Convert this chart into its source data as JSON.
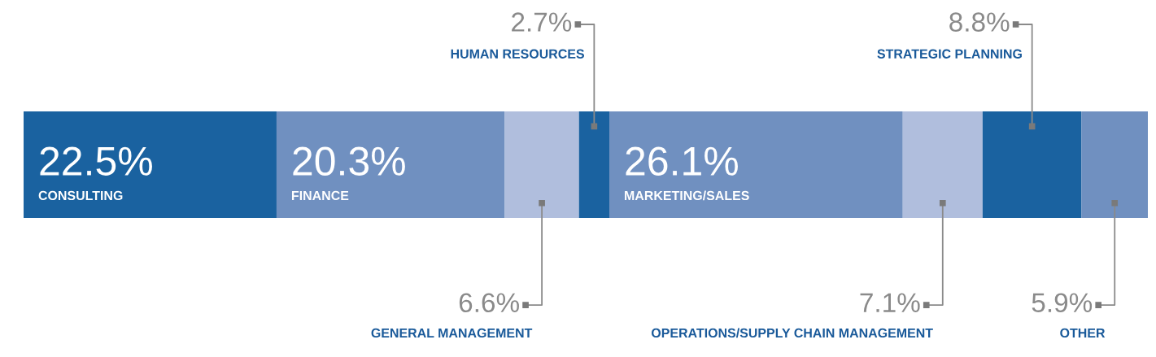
{
  "chart_data": {
    "type": "bar",
    "stacked": true,
    "orientation": "horizontal",
    "categories": [
      null
    ],
    "xlim": [
      0,
      100
    ],
    "series": [
      {
        "color": "#1a62a0",
        "values": [
          22.5
        ],
        "value_labels": [
          "22.5%"
        ]
      },
      {
        "color": "#7090c0",
        "values": [
          20.3
        ],
        "value_labels": [
          "20.3%"
        ]
      },
      {
        "color": "#b0bedd",
        "values": [
          6.6
        ],
        "value_labels": [
          "6.6%"
        ]
      },
      {
        "color": "#1a62a0",
        "values": [
          2.7
        ],
        "value_labels": [
          "2.7%"
        ]
      },
      {
        "color": "#7090c0",
        "values": [
          26.1
        ],
        "value_labels": [
          "26.1%"
        ]
      },
      {
        "color": "#b0bedd",
        "values": [
          7.1
        ],
        "value_labels": [
          "7.1%"
        ]
      },
      {
        "color": "#1a62a0",
        "values": [
          8.8
        ],
        "value_labels": [
          "8.8%"
        ]
      },
      {
        "color": "#7090c0",
        "values": [
          5.9
        ],
        "value_labels": [
          "5.9%"
        ]
      }
    ],
    "annotations": [
      "CONSULTING",
      "FINANCE",
      "GENERAL MANAGEMENT",
      "HUMAN RESOURCES",
      "MARKETING/SALES",
      "OPERATIONS/SUPPLY CHAIN MANAGEMENT",
      "STRATEGIC PLANNING",
      "OTHER"
    ]
  }
}
